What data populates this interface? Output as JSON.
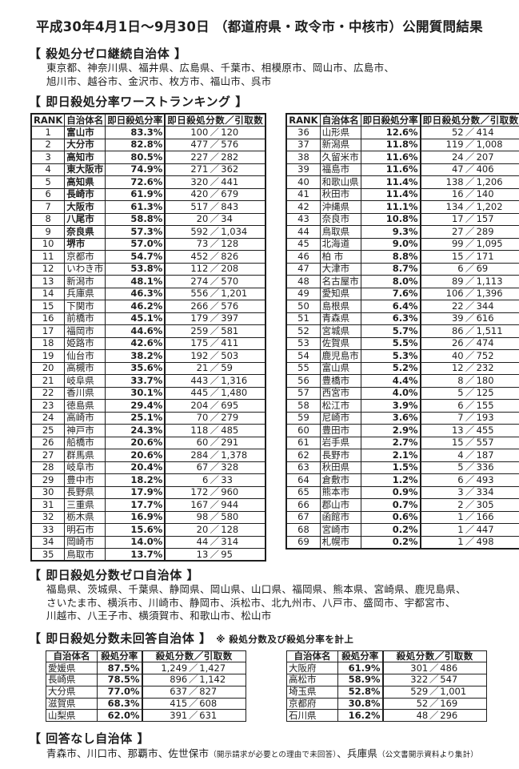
{
  "colors": {
    "text": "#1e1e1e",
    "background": "#ffffff",
    "border": "#1e1e1e"
  },
  "title": "平成30年4月1日～9月30日 （都道府県・政令市・中核市）公開質問結果",
  "zero_continuing": {
    "heading": "【 殺処分ゼロ継続自治体 】",
    "lines": [
      "東京都、神奈川県、福井県、広島県、千葉市、相模原市、岡山市、広島市、",
      "旭川市、越谷市、金沢市、枚方市、福山市、呉市"
    ]
  },
  "ranking": {
    "heading": "【 即日殺処分率ワーストランキング 】",
    "columns": {
      "rank": "RANK",
      "name": "自治体名",
      "rate": "即日殺処分率",
      "fraction": "即日殺処分数／引取数"
    },
    "rows_left": [
      {
        "rank": "1",
        "name": "富山市",
        "rate": "83.3%",
        "kills": "100",
        "intake": "120",
        "bold": true
      },
      {
        "rank": "2",
        "name": "大分市",
        "rate": "82.8%",
        "kills": "477",
        "intake": "576",
        "bold": true
      },
      {
        "rank": "3",
        "name": "高知市",
        "rate": "80.5%",
        "kills": "227",
        "intake": "282",
        "bold": true
      },
      {
        "rank": "4",
        "name": "東大阪市",
        "rate": "74.9%",
        "kills": "271",
        "intake": "362",
        "bold": true
      },
      {
        "rank": "5",
        "name": "高知県",
        "rate": "72.6%",
        "kills": "320",
        "intake": "441",
        "bold": true
      },
      {
        "rank": "6",
        "name": "長崎市",
        "rate": "61.9%",
        "kills": "420",
        "intake": "679",
        "bold": true
      },
      {
        "rank": "7",
        "name": "大阪市",
        "rate": "61.3%",
        "kills": "517",
        "intake": "843",
        "bold": true
      },
      {
        "rank": "8",
        "name": "八尾市",
        "rate": "58.8%",
        "kills": "20",
        "intake": "34",
        "bold": true
      },
      {
        "rank": "9",
        "name": "奈良県",
        "rate": "57.3%",
        "kills": "592",
        "intake": "1,034",
        "bold": true
      },
      {
        "rank": "10",
        "name": "堺市",
        "rate": "57.0%",
        "kills": "73",
        "intake": "128",
        "bold": true
      },
      {
        "rank": "11",
        "name": "京都市",
        "rate": "54.7%",
        "kills": "452",
        "intake": "826",
        "bold": false
      },
      {
        "rank": "12",
        "name": "いわき市",
        "rate": "53.8%",
        "kills": "112",
        "intake": "208",
        "bold": false
      },
      {
        "rank": "13",
        "name": "新潟市",
        "rate": "48.1%",
        "kills": "274",
        "intake": "570",
        "bold": false
      },
      {
        "rank": "14",
        "name": "兵庫県",
        "rate": "46.3%",
        "kills": "556",
        "intake": "1,201",
        "bold": false
      },
      {
        "rank": "15",
        "name": "下関市",
        "rate": "46.2%",
        "kills": "266",
        "intake": "576",
        "bold": false
      },
      {
        "rank": "16",
        "name": "前橋市",
        "rate": "45.1%",
        "kills": "179",
        "intake": "397",
        "bold": false
      },
      {
        "rank": "17",
        "name": "福岡市",
        "rate": "44.6%",
        "kills": "259",
        "intake": "581",
        "bold": false
      },
      {
        "rank": "18",
        "name": "姫路市",
        "rate": "42.6%",
        "kills": "175",
        "intake": "411",
        "bold": false
      },
      {
        "rank": "19",
        "name": "仙台市",
        "rate": "38.2%",
        "kills": "192",
        "intake": "503",
        "bold": false
      },
      {
        "rank": "20",
        "name": "高槻市",
        "rate": "35.6%",
        "kills": "21",
        "intake": "59",
        "bold": false
      },
      {
        "rank": "21",
        "name": "岐阜県",
        "rate": "33.7%",
        "kills": "443",
        "intake": "1,316",
        "bold": false
      },
      {
        "rank": "22",
        "name": "香川県",
        "rate": "30.1%",
        "kills": "445",
        "intake": "1,480",
        "bold": false
      },
      {
        "rank": "23",
        "name": "徳島県",
        "rate": "29.4%",
        "kills": "204",
        "intake": "695",
        "bold": false
      },
      {
        "rank": "24",
        "name": "高崎市",
        "rate": "25.1%",
        "kills": "70",
        "intake": "279",
        "bold": false
      },
      {
        "rank": "25",
        "name": "神戸市",
        "rate": "24.3%",
        "kills": "118",
        "intake": "485",
        "bold": false
      },
      {
        "rank": "26",
        "name": "船橋市",
        "rate": "20.6%",
        "kills": "60",
        "intake": "291",
        "bold": false
      },
      {
        "rank": "27",
        "name": "群馬県",
        "rate": "20.6%",
        "kills": "284",
        "intake": "1,378",
        "bold": false
      },
      {
        "rank": "28",
        "name": "岐阜市",
        "rate": "20.4%",
        "kills": "67",
        "intake": "328",
        "bold": false
      },
      {
        "rank": "29",
        "name": "豊中市",
        "rate": "18.2%",
        "kills": "6",
        "intake": "33",
        "bold": false
      },
      {
        "rank": "30",
        "name": "長野県",
        "rate": "17.9%",
        "kills": "172",
        "intake": "960",
        "bold": false
      },
      {
        "rank": "31",
        "name": "三重県",
        "rate": "17.7%",
        "kills": "167",
        "intake": "944",
        "bold": false
      },
      {
        "rank": "32",
        "name": "栃木県",
        "rate": "16.9%",
        "kills": "98",
        "intake": "580",
        "bold": false
      },
      {
        "rank": "33",
        "name": "明石市",
        "rate": "15.6%",
        "kills": "20",
        "intake": "128",
        "bold": false
      },
      {
        "rank": "34",
        "name": "岡崎市",
        "rate": "14.0%",
        "kills": "44",
        "intake": "314",
        "bold": false
      },
      {
        "rank": "35",
        "name": "鳥取市",
        "rate": "13.7%",
        "kills": "13",
        "intake": "95",
        "bold": false
      }
    ],
    "rows_right": [
      {
        "rank": "36",
        "name": "山形県",
        "rate": "12.6%",
        "kills": "52",
        "intake": "414",
        "bold": false
      },
      {
        "rank": "37",
        "name": "新潟県",
        "rate": "11.8%",
        "kills": "119",
        "intake": "1,008",
        "bold": false
      },
      {
        "rank": "38",
        "name": "久留米市",
        "rate": "11.6%",
        "kills": "24",
        "intake": "207",
        "bold": false
      },
      {
        "rank": "39",
        "name": "福島市",
        "rate": "11.6%",
        "kills": "47",
        "intake": "406",
        "bold": false
      },
      {
        "rank": "40",
        "name": "和歌山県",
        "rate": "11.4%",
        "kills": "138",
        "intake": "1,206",
        "bold": false
      },
      {
        "rank": "41",
        "name": "秋田市",
        "rate": "11.4%",
        "kills": "16",
        "intake": "140",
        "bold": false
      },
      {
        "rank": "42",
        "name": "沖縄県",
        "rate": "11.1%",
        "kills": "134",
        "intake": "1,202",
        "bold": false
      },
      {
        "rank": "43",
        "name": "奈良市",
        "rate": "10.8%",
        "kills": "17",
        "intake": "157",
        "bold": false
      },
      {
        "rank": "44",
        "name": "鳥取県",
        "rate": "9.3%",
        "kills": "27",
        "intake": "289",
        "bold": false
      },
      {
        "rank": "45",
        "name": "北海道",
        "rate": "9.0%",
        "kills": "99",
        "intake": "1,095",
        "bold": false
      },
      {
        "rank": "46",
        "name": "柏 市",
        "rate": "8.8%",
        "kills": "15",
        "intake": "171",
        "bold": false
      },
      {
        "rank": "47",
        "name": "大津市",
        "rate": "8.7%",
        "kills": "6",
        "intake": "69",
        "bold": false
      },
      {
        "rank": "48",
        "name": "名古屋市",
        "rate": "8.0%",
        "kills": "89",
        "intake": "1,113",
        "bold": false
      },
      {
        "rank": "49",
        "name": "愛知県",
        "rate": "7.6%",
        "kills": "106",
        "intake": "1,396",
        "bold": false
      },
      {
        "rank": "50",
        "name": "島根県",
        "rate": "6.4%",
        "kills": "22",
        "intake": "344",
        "bold": false
      },
      {
        "rank": "51",
        "name": "青森県",
        "rate": "6.3%",
        "kills": "39",
        "intake": "616",
        "bold": false
      },
      {
        "rank": "52",
        "name": "宮城県",
        "rate": "5.7%",
        "kills": "86",
        "intake": "1,511",
        "bold": false
      },
      {
        "rank": "53",
        "name": "佐賀県",
        "rate": "5.5%",
        "kills": "26",
        "intake": "474",
        "bold": false
      },
      {
        "rank": "54",
        "name": "鹿児島市",
        "rate": "5.3%",
        "kills": "40",
        "intake": "752",
        "bold": false
      },
      {
        "rank": "55",
        "name": "富山県",
        "rate": "5.2%",
        "kills": "12",
        "intake": "232",
        "bold": false
      },
      {
        "rank": "56",
        "name": "豊橋市",
        "rate": "4.4%",
        "kills": "8",
        "intake": "180",
        "bold": false
      },
      {
        "rank": "57",
        "name": "西宮市",
        "rate": "4.0%",
        "kills": "5",
        "intake": "125",
        "bold": false
      },
      {
        "rank": "58",
        "name": "松江市",
        "rate": "3.9%",
        "kills": "6",
        "intake": "155",
        "bold": false
      },
      {
        "rank": "59",
        "name": "尼崎市",
        "rate": "3.6%",
        "kills": "7",
        "intake": "193",
        "bold": false
      },
      {
        "rank": "60",
        "name": "豊田市",
        "rate": "2.9%",
        "kills": "13",
        "intake": "455",
        "bold": false
      },
      {
        "rank": "61",
        "name": "岩手県",
        "rate": "2.7%",
        "kills": "15",
        "intake": "557",
        "bold": false
      },
      {
        "rank": "62",
        "name": "長野市",
        "rate": "2.1%",
        "kills": "4",
        "intake": "187",
        "bold": false
      },
      {
        "rank": "63",
        "name": "秋田県",
        "rate": "1.5%",
        "kills": "5",
        "intake": "336",
        "bold": false
      },
      {
        "rank": "64",
        "name": "倉敷市",
        "rate": "1.2%",
        "kills": "6",
        "intake": "493",
        "bold": false
      },
      {
        "rank": "65",
        "name": "熊本市",
        "rate": "0.9%",
        "kills": "3",
        "intake": "334",
        "bold": false
      },
      {
        "rank": "66",
        "name": "郡山市",
        "rate": "0.7%",
        "kills": "2",
        "intake": "305",
        "bold": false
      },
      {
        "rank": "67",
        "name": "函館市",
        "rate": "0.6%",
        "kills": "1",
        "intake": "166",
        "bold": false
      },
      {
        "rank": "68",
        "name": "宮崎市",
        "rate": "0.2%",
        "kills": "1",
        "intake": "447",
        "bold": false
      },
      {
        "rank": "69",
        "name": "札幌市",
        "rate": "0.2%",
        "kills": "1",
        "intake": "498",
        "bold": false
      }
    ]
  },
  "zero_count": {
    "heading": "【 即日殺処分数ゼロ自治体 】",
    "lines": [
      "福島県、茨城県、千葉県、静岡県、岡山県、山口県、福岡県、熊本県、宮崎県、鹿児島県、",
      "さいたま市、横浜市、川崎市、静岡市、浜松市、北九州市、八戸市、盛岡市、宇都宮市、",
      "川越市、八王子市、横須賀市、和歌山市、松山市"
    ]
  },
  "no_answer": {
    "heading": "【 即日殺処分数未回答自治体 】",
    "note": "※ 殺処分数及び殺処分率を計上",
    "columns": {
      "name": "自治体名",
      "rate": "殺処分率",
      "fraction": "殺処分数／引取数"
    },
    "rows_left": [
      {
        "name": "愛媛県",
        "rate": "87.5%",
        "kills": "1,249",
        "intake": "1,427"
      },
      {
        "name": "長崎県",
        "rate": "78.5%",
        "kills": "896",
        "intake": "1,142"
      },
      {
        "name": "大分県",
        "rate": "77.0%",
        "kills": "637",
        "intake": "827"
      },
      {
        "name": "滋賀県",
        "rate": "68.3%",
        "kills": "415",
        "intake": "608"
      },
      {
        "name": "山梨県",
        "rate": "62.0%",
        "kills": "391",
        "intake": "631"
      }
    ],
    "rows_right": [
      {
        "name": "大阪府",
        "rate": "61.9%",
        "kills": "301",
        "intake": "486"
      },
      {
        "name": "高松市",
        "rate": "58.9%",
        "kills": "322",
        "intake": "547"
      },
      {
        "name": "埼玉県",
        "rate": "52.8%",
        "kills": "529",
        "intake": "1,001"
      },
      {
        "name": "京都府",
        "rate": "30.8%",
        "kills": "52",
        "intake": "169"
      },
      {
        "name": "石川県",
        "rate": "16.2%",
        "kills": "48",
        "intake": "296"
      }
    ]
  },
  "no_response": {
    "heading": "【 回答なし自治体 】",
    "segments": [
      {
        "text": "青森市、川口市、那覇市、佐世保市",
        "small": false
      },
      {
        "text": "（開示請求が必要との理由で未回答）",
        "small": true
      },
      {
        "text": "、兵庫県",
        "small": false
      },
      {
        "text": "（公文書開示資料より集計）",
        "small": true
      }
    ]
  }
}
